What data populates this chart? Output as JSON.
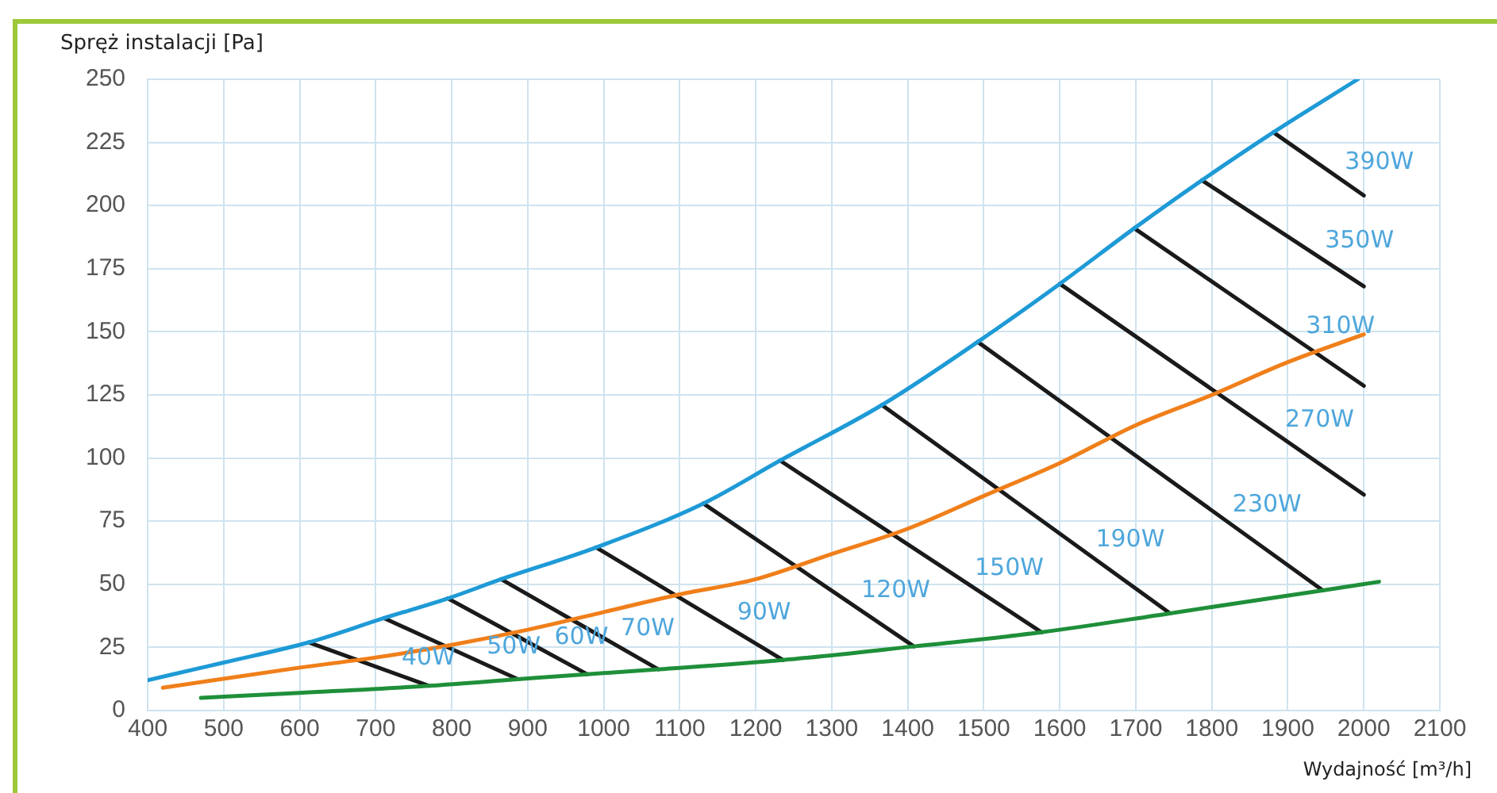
{
  "chart_data": {
    "type": "line",
    "xlabel": "Wydajność [m³/h]",
    "ylabel": "Spręż instalacji [Pa]",
    "xlim": [
      400,
      2100
    ],
    "xticks": [
      400,
      500,
      600,
      700,
      800,
      900,
      1000,
      1100,
      1200,
      1300,
      1400,
      1500,
      1600,
      1700,
      1800,
      1900,
      2000,
      2100
    ],
    "ylim": [
      0,
      250
    ],
    "yticks": [
      0,
      25,
      50,
      75,
      100,
      125,
      150,
      175,
      200,
      225,
      250
    ],
    "grid": true,
    "legend": false,
    "marker": "none",
    "line_style": "solid",
    "series": [
      {
        "color": "#1e9ad6",
        "x": [
          400,
          500,
          612,
          711,
          795,
          865,
          990,
          1131,
          1232,
          1366,
          1492,
          1600,
          1698,
          1787,
          1881,
          1992
        ],
        "values": [
          12,
          19,
          27,
          36.6,
          44.4,
          52,
          64.6,
          82,
          99,
          121,
          146,
          169,
          191,
          210,
          229,
          250
        ]
      },
      {
        "color": "#f07f1a",
        "x": [
          420,
          600,
          700,
          800,
          900,
          1000,
          1100,
          1200,
          1300,
          1400,
          1500,
          1600,
          1700,
          1800,
          1900,
          2000
        ],
        "values": [
          9,
          17,
          21,
          26,
          32,
          39,
          46,
          52,
          62,
          72,
          85,
          98,
          113,
          125,
          138,
          149
        ]
      },
      {
        "color": "#1f8f3a",
        "x": [
          470,
          600,
          770,
          887,
          978,
          1072,
          1236,
          1408,
          1576,
          1745,
          1946,
          2020
        ],
        "values": [
          5,
          7,
          9.8,
          12.4,
          14.4,
          16.3,
          20,
          25.4,
          31,
          38.5,
          47.6,
          51
        ]
      },
      {
        "name": "40W",
        "color": "#1a1a1a",
        "x": [
          612,
          770
        ],
        "values": [
          27,
          9.8
        ]
      },
      {
        "name": "50W",
        "color": "#1a1a1a",
        "x": [
          711,
          887
        ],
        "values": [
          36.6,
          12.4
        ]
      },
      {
        "name": "60W",
        "color": "#1a1a1a",
        "x": [
          795,
          978
        ],
        "values": [
          44.4,
          14.4
        ]
      },
      {
        "name": "70W",
        "color": "#1a1a1a",
        "x": [
          865,
          1072
        ],
        "values": [
          52,
          16.3
        ]
      },
      {
        "name": "90W",
        "color": "#1a1a1a",
        "x": [
          990,
          1236
        ],
        "values": [
          64.6,
          20
        ]
      },
      {
        "name": "120W",
        "color": "#1a1a1a",
        "x": [
          1131,
          1408
        ],
        "values": [
          82,
          25.4
        ]
      },
      {
        "name": "150W",
        "color": "#1a1a1a",
        "x": [
          1232,
          1576
        ],
        "values": [
          99,
          31
        ]
      },
      {
        "name": "190W",
        "color": "#1a1a1a",
        "x": [
          1366,
          1745
        ],
        "values": [
          121,
          38.5
        ]
      },
      {
        "name": "230W",
        "color": "#1a1a1a",
        "x": [
          1492,
          1946
        ],
        "values": [
          146,
          47.6
        ]
      },
      {
        "name": "270W",
        "color": "#1a1a1a",
        "x": [
          1600,
          2000
        ],
        "values": [
          169,
          85.5
        ]
      },
      {
        "name": "310W",
        "color": "#1a1a1a",
        "x": [
          1698,
          2000
        ],
        "values": [
          191,
          128.6
        ]
      },
      {
        "name": "350W",
        "color": "#1a1a1a",
        "x": [
          1787,
          2000
        ],
        "values": [
          210,
          168
        ]
      },
      {
        "name": "390W",
        "color": "#1a1a1a",
        "x": [
          1881,
          2000
        ],
        "values": [
          229,
          204
        ]
      }
    ]
  }
}
